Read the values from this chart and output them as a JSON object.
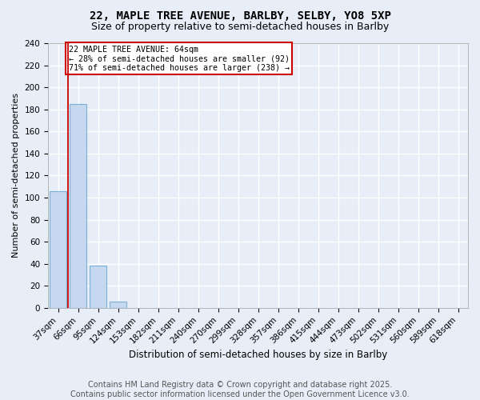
{
  "title": "22, MAPLE TREE AVENUE, BARLBY, SELBY, YO8 5XP",
  "subtitle": "Size of property relative to semi-detached houses in Barlby",
  "xlabel": "Distribution of semi-detached houses by size in Barlby",
  "ylabel": "Number of semi-detached properties",
  "categories": [
    "37sqm",
    "66sqm",
    "95sqm",
    "124sqm",
    "153sqm",
    "182sqm",
    "211sqm",
    "240sqm",
    "270sqm",
    "299sqm",
    "328sqm",
    "357sqm",
    "386sqm",
    "415sqm",
    "444sqm",
    "473sqm",
    "502sqm",
    "531sqm",
    "560sqm",
    "589sqm",
    "618sqm"
  ],
  "values": [
    106,
    185,
    38,
    6,
    0,
    0,
    0,
    0,
    0,
    0,
    0,
    0,
    0,
    0,
    0,
    0,
    0,
    0,
    0,
    0,
    0
  ],
  "bar_color": "#c5d8ef",
  "bar_edge_color": "#7bafd4",
  "vline_color": "#cc0000",
  "annotation_box_text": "22 MAPLE TREE AVENUE: 64sqm\n← 28% of semi-detached houses are smaller (92)\n71% of semi-detached houses are larger (238) →",
  "annotation_box_color": "#cc0000",
  "ylim": [
    0,
    240
  ],
  "yticks": [
    0,
    20,
    40,
    60,
    80,
    100,
    120,
    140,
    160,
    180,
    200,
    220,
    240
  ],
  "footer_text": "Contains HM Land Registry data © Crown copyright and database right 2025.\nContains public sector information licensed under the Open Government Licence v3.0.",
  "background_color": "#e8eef8",
  "plot_background_color": "#e8eef8",
  "grid_color": "#ffffff",
  "title_fontsize": 10,
  "subtitle_fontsize": 9,
  "axis_fontsize": 8,
  "tick_fontsize": 7.5,
  "footer_fontsize": 7,
  "xlabel_fontsize": 8.5
}
